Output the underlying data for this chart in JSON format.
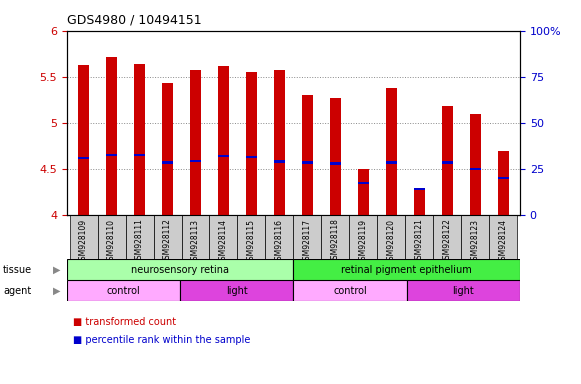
{
  "title": "GDS4980 / 10494151",
  "samples": [
    "GSM928109",
    "GSM928110",
    "GSM928111",
    "GSM928112",
    "GSM928113",
    "GSM928114",
    "GSM928115",
    "GSM928116",
    "GSM928117",
    "GSM928118",
    "GSM928119",
    "GSM928120",
    "GSM928121",
    "GSM928122",
    "GSM928123",
    "GSM928124"
  ],
  "transformed_count": [
    5.63,
    5.72,
    5.64,
    5.43,
    5.57,
    5.62,
    5.55,
    5.57,
    5.3,
    5.27,
    4.5,
    5.38,
    4.27,
    5.18,
    5.1,
    4.7
  ],
  "percentile_rank": [
    4.62,
    4.65,
    4.65,
    4.57,
    4.59,
    4.64,
    4.63,
    4.58,
    4.57,
    4.56,
    4.35,
    4.57,
    4.28,
    4.57,
    4.5,
    4.4
  ],
  "ylim_left": [
    4.0,
    6.0
  ],
  "ylim_right": [
    0,
    100
  ],
  "yticks_left": [
    4.0,
    4.5,
    5.0,
    5.5,
    6.0
  ],
  "yticks_right": [
    0,
    25,
    50,
    75,
    100
  ],
  "ytick_labels_left": [
    "4",
    "4.5",
    "5",
    "5.5",
    "6"
  ],
  "ytick_labels_right": [
    "0",
    "25",
    "50",
    "75",
    "100%"
  ],
  "bar_color": "#cc0000",
  "percentile_color": "#0000cc",
  "bar_bottom": 4.0,
  "tissue_groups": [
    {
      "label": "neurosensory retina",
      "start": 0,
      "end": 8,
      "color": "#aaffaa"
    },
    {
      "label": "retinal pigment epithelium",
      "start": 8,
      "end": 16,
      "color": "#44ee44"
    }
  ],
  "agent_groups": [
    {
      "label": "control",
      "start": 0,
      "end": 4,
      "color": "#ffaaff"
    },
    {
      "label": "light",
      "start": 4,
      "end": 8,
      "color": "#dd44dd"
    },
    {
      "label": "control",
      "start": 8,
      "end": 12,
      "color": "#ffaaff"
    },
    {
      "label": "light",
      "start": 12,
      "end": 16,
      "color": "#dd44dd"
    }
  ],
  "legend_items": [
    {
      "label": "transformed count",
      "color": "#cc0000"
    },
    {
      "label": "percentile rank within the sample",
      "color": "#0000cc"
    }
  ],
  "grid_color": "#888888",
  "background_color": "#ffffff",
  "plot_bg_color": "#ffffff",
  "tick_label_color_left": "#cc0000",
  "tick_label_color_right": "#0000cc",
  "xticklabel_bg": "#cccccc",
  "bar_width": 0.4,
  "blue_bar_height": 0.025
}
